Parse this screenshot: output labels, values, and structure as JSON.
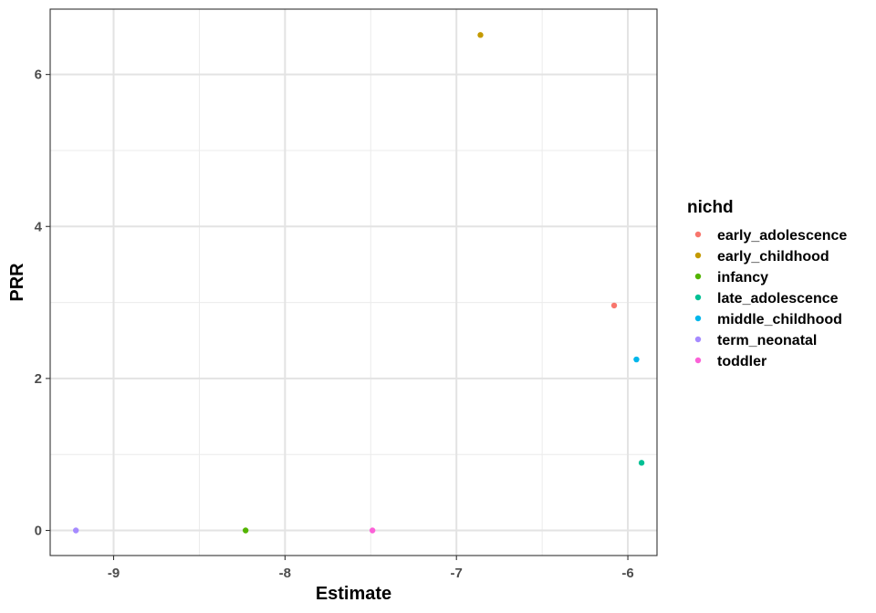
{
  "chart_data": {
    "type": "scatter",
    "title": "",
    "xlabel": "Estimate",
    "ylabel": "PRR",
    "xlim": [
      -9.37,
      -5.83
    ],
    "ylim": [
      -0.33,
      6.86
    ],
    "x_ticks": [
      {
        "value": -9,
        "label": "-9"
      },
      {
        "value": -8,
        "label": "-8"
      },
      {
        "value": -7,
        "label": "-7"
      },
      {
        "value": -6,
        "label": "-6"
      }
    ],
    "x_minor": [
      -8.5,
      -7.5,
      -6.5
    ],
    "y_ticks": [
      {
        "value": 0,
        "label": "0"
      },
      {
        "value": 2,
        "label": "2"
      },
      {
        "value": 4,
        "label": "4"
      },
      {
        "value": 6,
        "label": "6"
      }
    ],
    "y_minor": [
      1,
      3,
      5
    ],
    "grid": true,
    "legend": {
      "title": "nichd",
      "position": "right"
    },
    "series": [
      {
        "name": "early_adolescence",
        "color": "#F8766D",
        "points": [
          {
            "x": -6.08,
            "y": 2.96
          }
        ]
      },
      {
        "name": "early_childhood",
        "color": "#C49A00",
        "points": [
          {
            "x": -6.86,
            "y": 6.52
          }
        ]
      },
      {
        "name": "infancy",
        "color": "#53B400",
        "points": [
          {
            "x": -8.23,
            "y": 0.0
          }
        ]
      },
      {
        "name": "late_adolescence",
        "color": "#00C094",
        "points": [
          {
            "x": -5.92,
            "y": 0.89
          }
        ]
      },
      {
        "name": "middle_childhood",
        "color": "#00B6EB",
        "points": [
          {
            "x": -5.95,
            "y": 2.25
          }
        ]
      },
      {
        "name": "term_neonatal",
        "color": "#A58AFF",
        "points": [
          {
            "x": -9.22,
            "y": 0.0
          }
        ]
      },
      {
        "name": "toddler",
        "color": "#FB61D7",
        "points": [
          {
            "x": -7.49,
            "y": 0.0
          }
        ]
      }
    ]
  }
}
